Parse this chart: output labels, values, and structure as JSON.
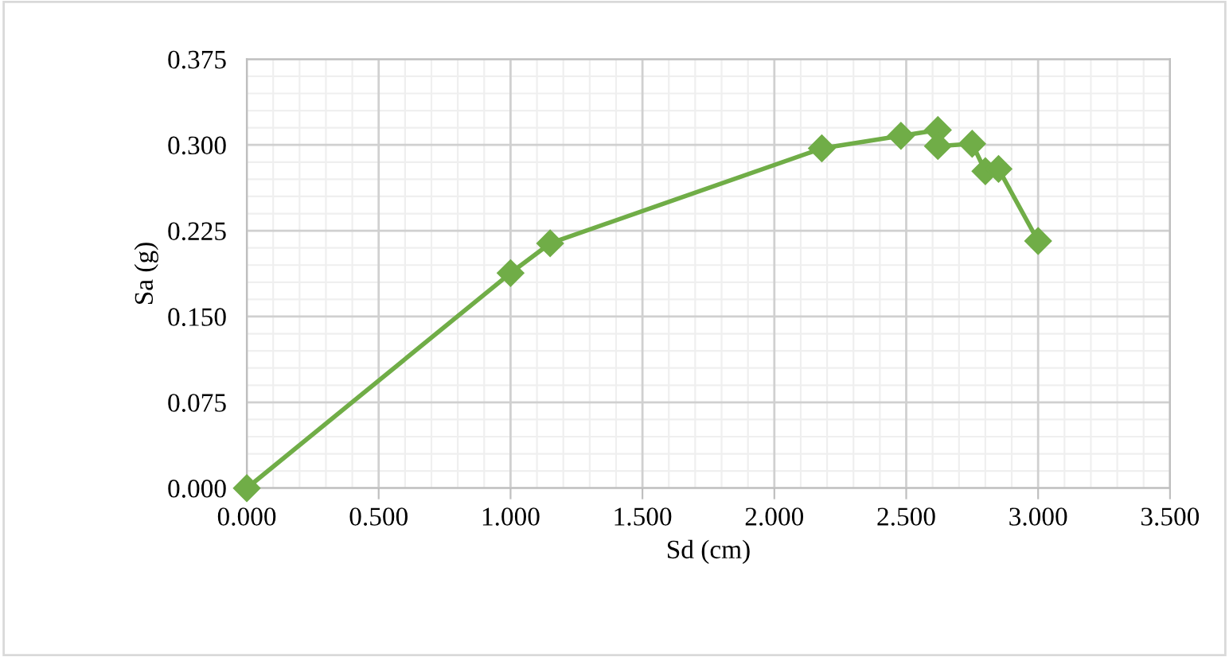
{
  "chart_data": {
    "type": "line",
    "xlabel": "Sd (cm)",
    "ylabel": "Sa (g)",
    "series": [
      {
        "color": "#70ad47",
        "x": [
          0.0,
          1.0,
          1.15,
          2.18,
          2.48,
          2.62,
          2.62,
          2.75,
          2.8,
          2.85,
          3.0
        ],
        "values": [
          0.0,
          0.188,
          0.214,
          0.297,
          0.308,
          0.313,
          0.299,
          0.301,
          0.277,
          0.279,
          0.216
        ]
      }
    ],
    "xlim": [
      0,
      3.5
    ],
    "ylim": [
      0,
      0.375
    ],
    "xticks": [
      {
        "value": 0,
        "label": "0.000"
      },
      {
        "value": 0.5,
        "label": "0.500"
      },
      {
        "value": 1,
        "label": "1.000"
      },
      {
        "value": 1.5,
        "label": "1.500"
      },
      {
        "value": 2,
        "label": "2.000"
      },
      {
        "value": 2.5,
        "label": "2.500"
      },
      {
        "value": 3,
        "label": "3.000"
      },
      {
        "value": 3.5,
        "label": "3.500"
      }
    ],
    "yticks": [
      {
        "value": 0,
        "label": "0.000"
      },
      {
        "value": 0.075,
        "label": "0.075"
      },
      {
        "value": 0.15,
        "label": "0.150"
      },
      {
        "value": 0.225,
        "label": "0.225"
      },
      {
        "value": 0.3,
        "label": "0.300"
      },
      {
        "value": 0.375,
        "label": "0.375"
      }
    ],
    "grid": true,
    "marker": "diamond",
    "line_style": "solid",
    "legend": false
  }
}
